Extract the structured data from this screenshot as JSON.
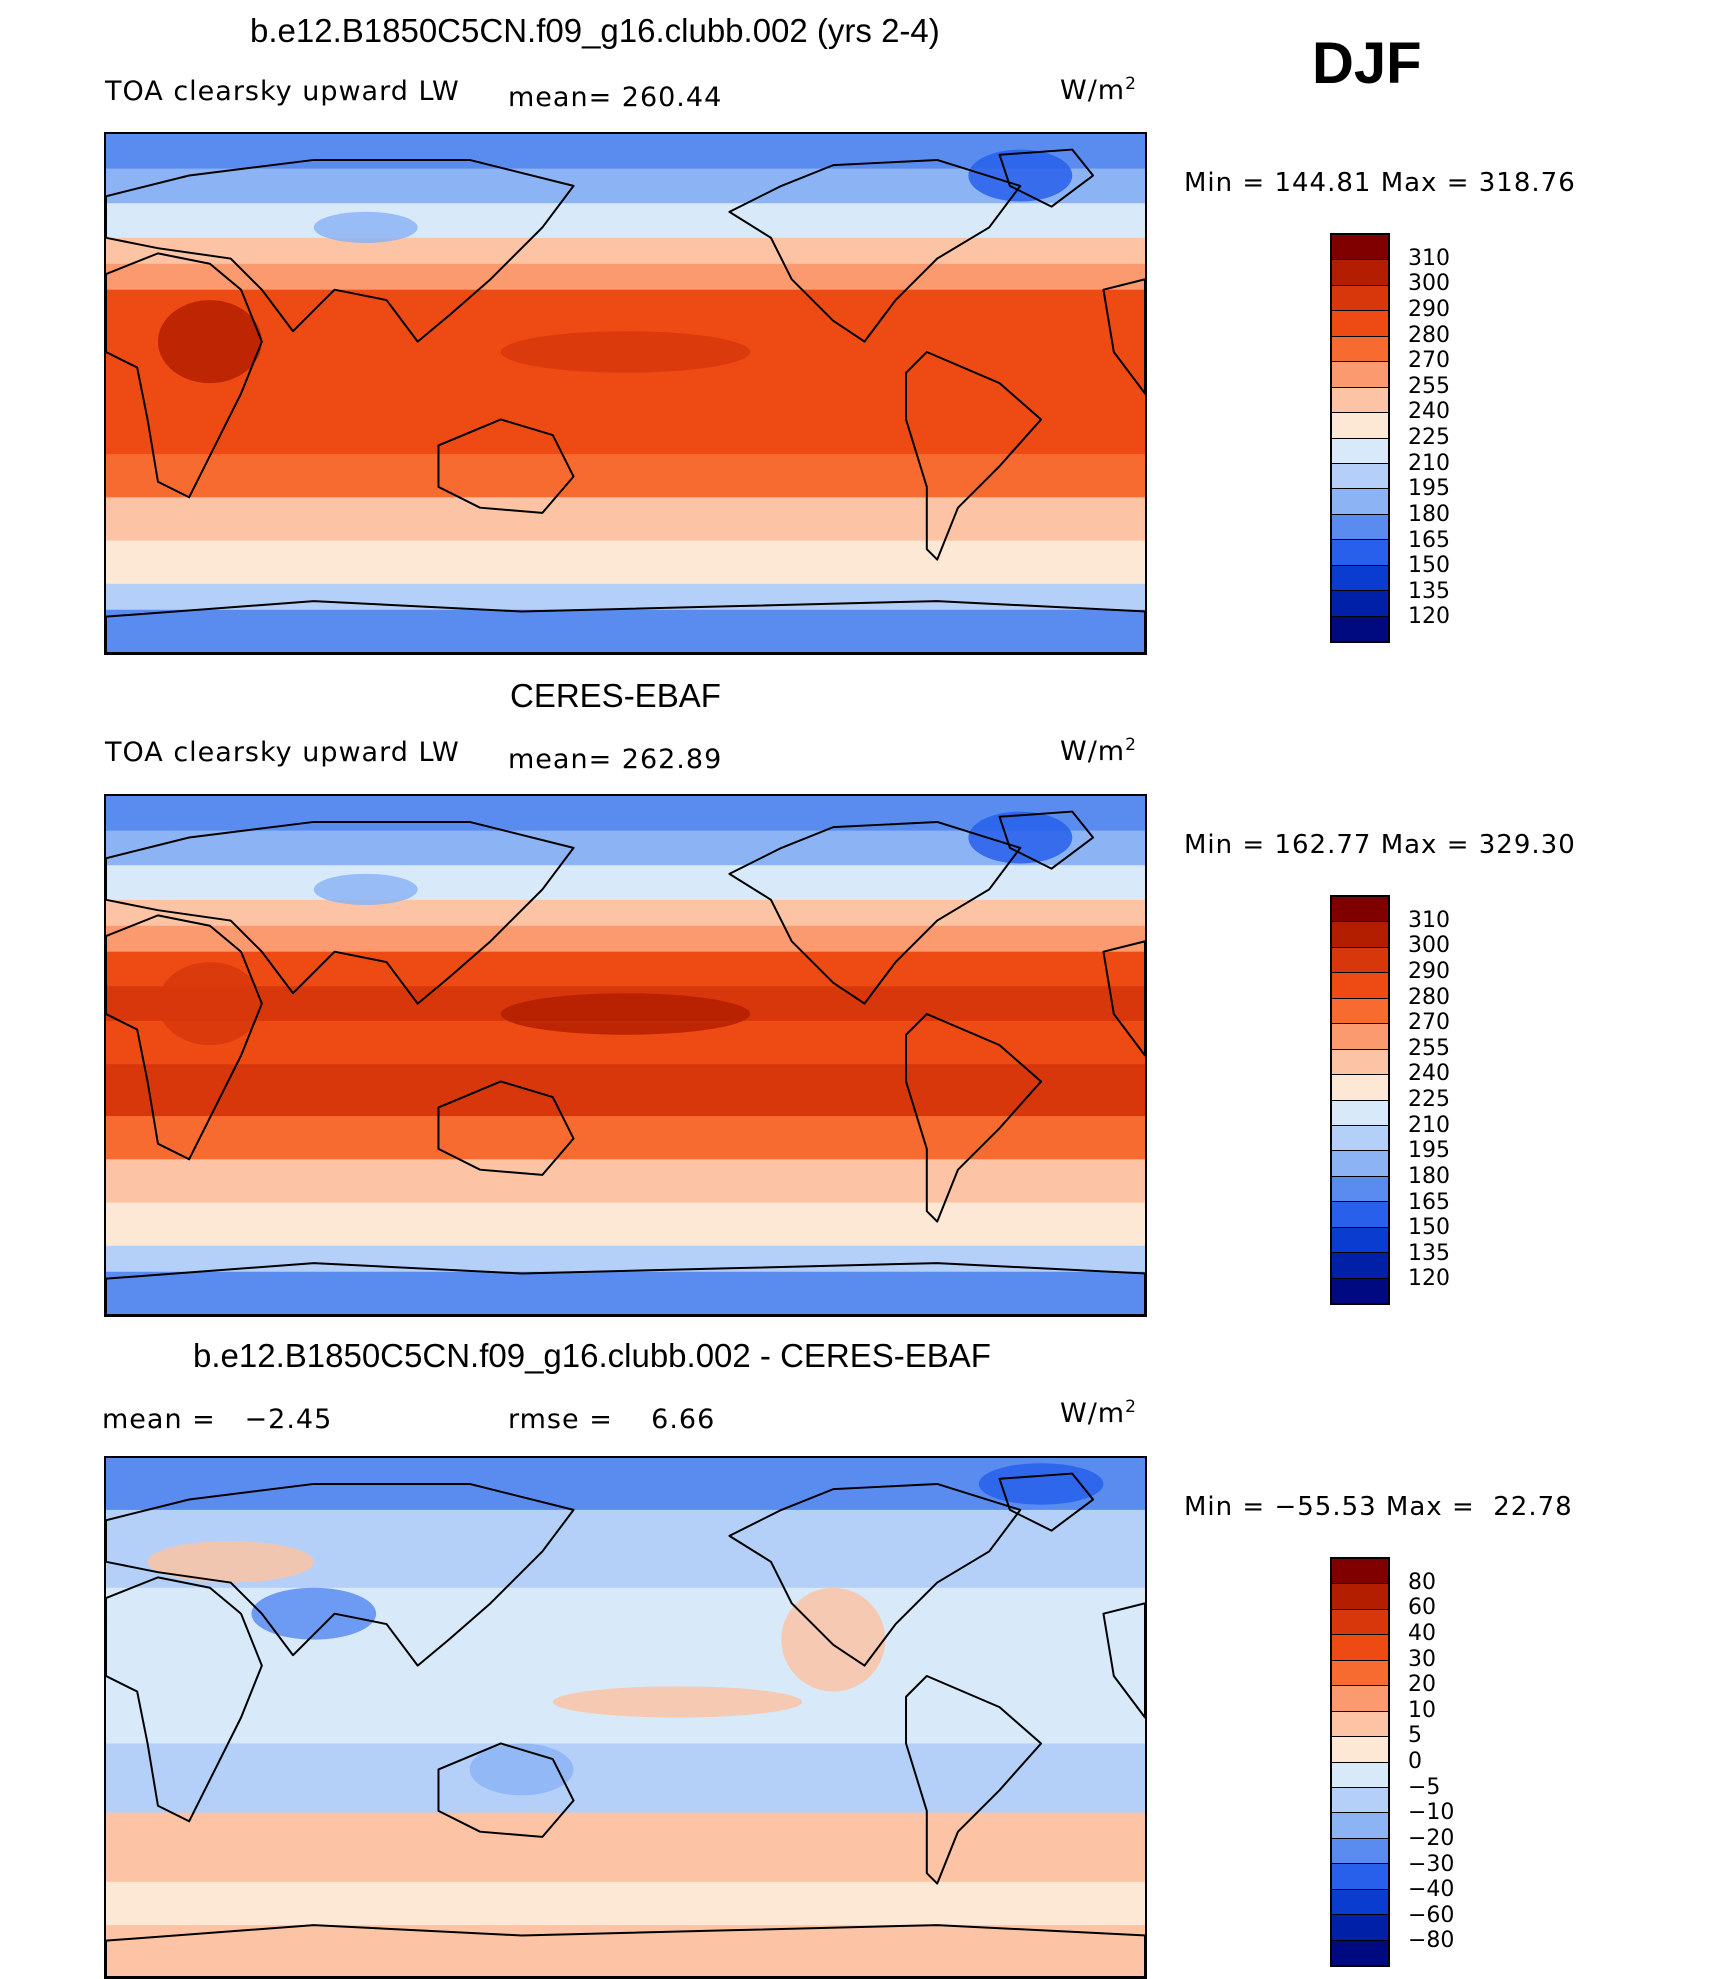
{
  "season": "DJF",
  "panels": [
    {
      "title": "b.e12.B1850C5CN.f09_g16.clubb.002 (yrs 2-4)",
      "left_label": "TOA clearsky upward LW",
      "mid_label": "mean= 260.44",
      "units_base": "W/m",
      "units_sup": "2",
      "minmax": "Min = 144.81 Max = 318.76",
      "palette": "abs",
      "variant": "model"
    },
    {
      "title": "CERES-EBAF",
      "left_label": "TOA clearsky upward LW",
      "mid_label": "mean= 262.89",
      "units_base": "W/m",
      "units_sup": "2",
      "minmax": "Min = 162.77 Max = 329.30",
      "palette": "abs",
      "variant": "obs"
    },
    {
      "title": "b.e12.B1850C5CN.f09_g16.clubb.002 - CERES-EBAF",
      "left_label": "mean =   −2.45",
      "mid_label": "rmse =    6.66",
      "units_base": "W/m",
      "units_sup": "2",
      "minmax": "Min = −55.53 Max =  22.78",
      "palette": "diff",
      "variant": "diff"
    }
  ],
  "colorbars": {
    "abs": {
      "labels": [
        "310",
        "300",
        "290",
        "280",
        "270",
        "255",
        "240",
        "225",
        "210",
        "195",
        "180",
        "165",
        "150",
        "135",
        "120"
      ],
      "colors": [
        "#800000",
        "#b41e00",
        "#d7370a",
        "#ee4a14",
        "#f76b30",
        "#fa9a6e",
        "#fcc4a4",
        "#fde8d6",
        "#d8e9fa",
        "#b4d0f8",
        "#8cb4f5",
        "#5a8cf0",
        "#2860eb",
        "#0a3cd0",
        "#0020a8",
        "#000a80"
      ]
    },
    "diff": {
      "labels": [
        "80",
        "60",
        "40",
        "30",
        "20",
        "10",
        "5",
        "0",
        "−5",
        "−10",
        "−20",
        "−30",
        "−40",
        "−60",
        "−80"
      ],
      "colors": [
        "#800000",
        "#b41e00",
        "#d7370a",
        "#ee4a14",
        "#f76b30",
        "#fa9a6e",
        "#fcc4a4",
        "#fde8d6",
        "#d8e9fa",
        "#b4d0f8",
        "#8cb4f5",
        "#5a8cf0",
        "#2860eb",
        "#0a3cd0",
        "#0020a8",
        "#000a80"
      ]
    }
  }
}
